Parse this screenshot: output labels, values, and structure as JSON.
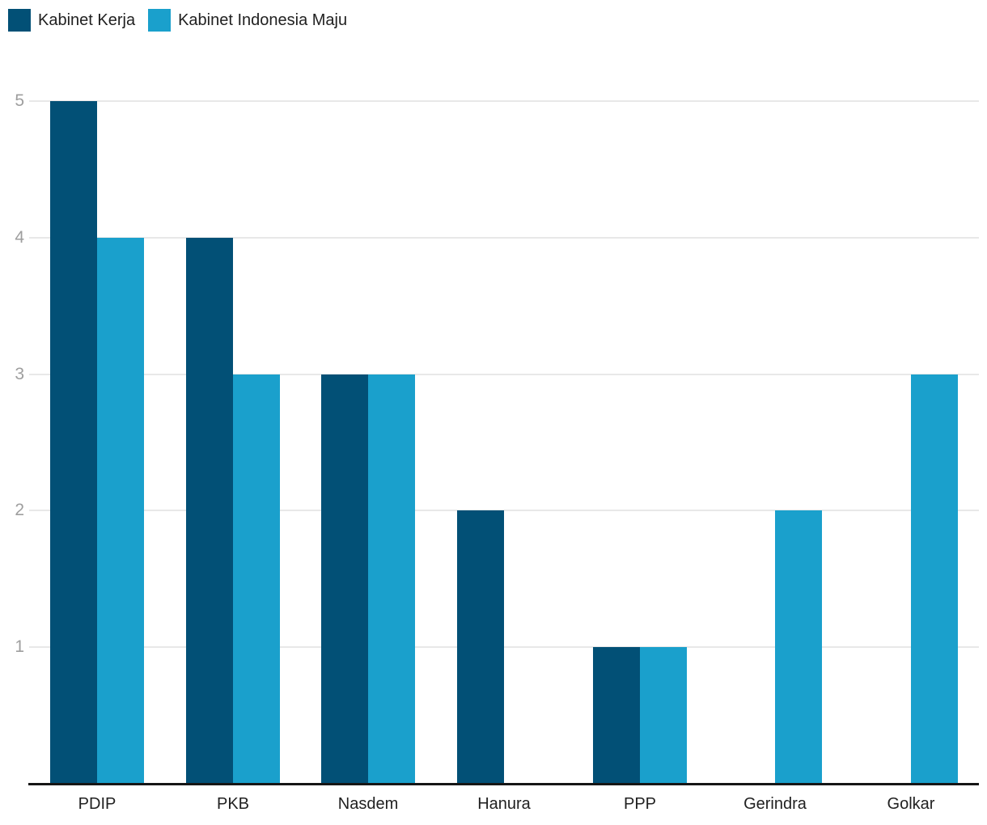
{
  "chart_data": {
    "type": "bar",
    "title": "",
    "categories": [
      "PDIP",
      "PKB",
      "Nasdem",
      "Hanura",
      "PPP",
      "Gerindra",
      "Golkar"
    ],
    "series": [
      {
        "name": "Kabinet Kerja",
        "color": "#025076",
        "values": [
          5,
          4,
          3,
          2,
          1,
          0,
          0
        ]
      },
      {
        "name": "Kabinet Indonesia Maju",
        "color": "#1aa0cc",
        "values": [
          4,
          3,
          3,
          0,
          1,
          2,
          3
        ]
      }
    ],
    "xlabel": "",
    "ylabel": "",
    "ylim": [
      0,
      5
    ],
    "yticks": [
      1,
      2,
      3,
      4,
      5
    ],
    "grid": true,
    "legend_position": "top-left",
    "colors": {
      "gridline": "#e8e8e8",
      "axis_line": "#161616",
      "y_tick_label": "#9e9e9e",
      "x_tick_label": "#212121",
      "legend_text": "#212121",
      "background": "#ffffff"
    }
  }
}
